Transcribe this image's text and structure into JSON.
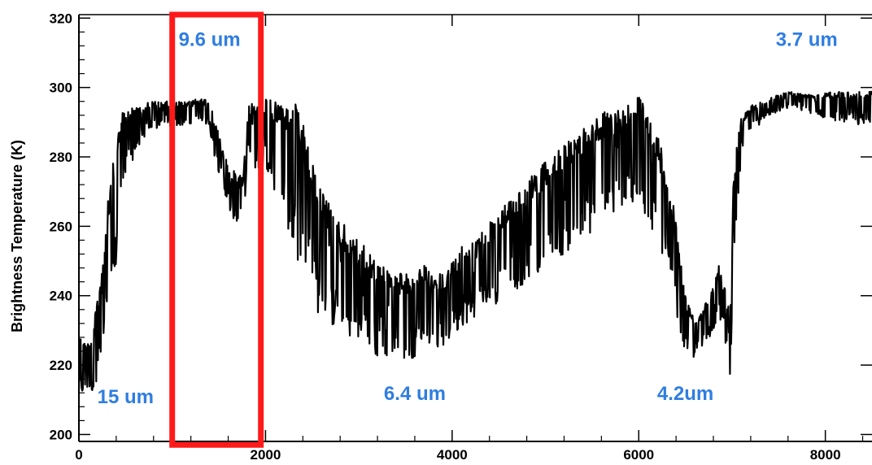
{
  "chart_data": {
    "type": "line",
    "title": "",
    "xlabel": "",
    "ylabel": "Brightness Temperature (K)",
    "xlim": [
      0,
      8500
    ],
    "ylim": [
      198,
      321
    ],
    "x_ticks": [
      0,
      2000,
      4000,
      6000,
      8000
    ],
    "x_tick_labels": [
      "0",
      "2000",
      "4000",
      "6000",
      "8000"
    ],
    "y_ticks": [
      200,
      220,
      240,
      260,
      280,
      300,
      320
    ],
    "y_tick_labels": [
      "200",
      "220",
      "240",
      "260",
      "280",
      "300",
      "320"
    ],
    "grid": false,
    "series": [
      {
        "color": "#000000",
        "upper_envelope": {
          "x": [
            0,
            80,
            160,
            240,
            320,
            380,
            440,
            520,
            620,
            760,
            900,
            1040,
            1180,
            1300,
            1400,
            1460,
            1540,
            1620,
            1700,
            1760,
            1820,
            1900,
            2000,
            2100,
            2200,
            2300,
            2400,
            2480,
            2560,
            2650,
            2800,
            3000,
            3200,
            3400,
            3600,
            3700,
            3800,
            3900,
            4000,
            4100,
            4300,
            4500,
            4700,
            4900,
            5100,
            5300,
            5500,
            5700,
            5900,
            6000,
            6100,
            6200,
            6300,
            6400,
            6450,
            6500,
            6600,
            6700,
            6780,
            6860,
            6920,
            6980,
            7020,
            7100,
            7200,
            7400,
            7600,
            7800,
            8000,
            8200,
            8400,
            8500
          ],
          "y": [
            234,
            226,
            232,
            248,
            272,
            280,
            292,
            294,
            295,
            296,
            296,
            296,
            296,
            297,
            296,
            290,
            283,
            277,
            275,
            275,
            296,
            296,
            297,
            296,
            296,
            297,
            290,
            280,
            274,
            268,
            262,
            256,
            250,
            247,
            246,
            249,
            245,
            247,
            250,
            254,
            258,
            264,
            270,
            276,
            281,
            286,
            291,
            294,
            296,
            298,
            294,
            287,
            276,
            262,
            250,
            240,
            234,
            237,
            241,
            249,
            244,
            234,
            278,
            292,
            295,
            297,
            299,
            298,
            299,
            299,
            299,
            299
          ]
        },
        "lower_envelope": {
          "x": [
            0,
            80,
            160,
            240,
            320,
            380,
            440,
            520,
            620,
            760,
            900,
            1040,
            1180,
            1300,
            1400,
            1460,
            1540,
            1620,
            1700,
            1760,
            1820,
            1900,
            2000,
            2100,
            2200,
            2300,
            2400,
            2480,
            2560,
            2650,
            2800,
            3000,
            3200,
            3400,
            3600,
            3700,
            3800,
            3900,
            4000,
            4100,
            4300,
            4500,
            4700,
            4900,
            5100,
            5300,
            5500,
            5700,
            5900,
            6000,
            6100,
            6200,
            6300,
            6400,
            6450,
            6500,
            6600,
            6700,
            6780,
            6860,
            6920,
            6980,
            7020,
            7100,
            7200,
            7400,
            7600,
            7800,
            8000,
            8200,
            8400,
            8500
          ],
          "y": [
            210,
            213,
            212,
            222,
            232,
            240,
            268,
            275,
            282,
            288,
            288,
            289,
            289,
            290,
            288,
            279,
            272,
            264,
            260,
            262,
            280,
            276,
            275,
            270,
            262,
            254,
            246,
            240,
            235,
            232,
            230,
            226,
            222,
            222,
            222,
            228,
            225,
            225,
            228,
            231,
            235,
            238,
            242,
            246,
            250,
            254,
            258,
            262,
            264,
            266,
            262,
            255,
            246,
            236,
            228,
            223,
            222,
            225,
            229,
            234,
            228,
            217,
            250,
            281,
            287,
            292,
            294,
            293,
            291,
            290,
            289,
            288
          ]
        }
      }
    ],
    "highlight_box": {
      "x_range": [
        1000,
        1950
      ],
      "y_range": [
        197,
        321
      ],
      "color": "#ff1a1a"
    },
    "annotations": [
      {
        "text": "15 um",
        "x": 500,
        "y": 209,
        "color": "#2f7de1"
      },
      {
        "text": "9.6 um",
        "x": 1400,
        "y": 312,
        "color": "#2f7de1"
      },
      {
        "text": "6.4 um",
        "x": 3600,
        "y": 210,
        "color": "#2f7de1"
      },
      {
        "text": "4.2um",
        "x": 6500,
        "y": 210,
        "color": "#2f7de1"
      },
      {
        "text": "3.7 um",
        "x": 7800,
        "y": 312,
        "color": "#2f7de1"
      }
    ]
  }
}
